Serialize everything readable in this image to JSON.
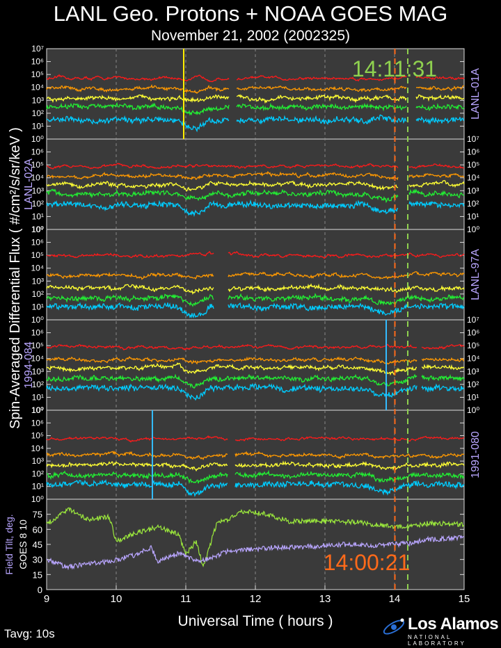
{
  "title": "LANL Geo. Protons + NOAA GOES MAG",
  "subtitle": "November 21, 2002 (2002325)",
  "xlabel": "Universal Time ( hours )",
  "ylabel": "Spin-Averaged Differential Flux  ( #/cm²/s/sr/keV )",
  "tavg": "Tavg: 10s",
  "logo": {
    "main": "Los Alamos",
    "sub": "NATIONAL LABORATORY"
  },
  "time_markers": [
    {
      "label": "14:11:31",
      "time_hours": 14.19,
      "color": "#8fd14f",
      "style": "dashed"
    },
    {
      "label": "14:00:21",
      "time_hours": 14.005,
      "color": "#ff6a1a",
      "style": "dashed"
    }
  ],
  "colors": {
    "background": "#3a3a3a",
    "channels": [
      "#ff1a1a",
      "#ff9900",
      "#ffff33",
      "#22ee33",
      "#00ccff"
    ],
    "tilt_goes10": "#9be83c",
    "tilt_goes8": "#b9a6ff",
    "label_purple": "#b9a6ff"
  },
  "chart_data": [
    {
      "type": "line",
      "title": "LANL-01A",
      "y_scale": "log",
      "ylim": [
        1,
        10000000
      ],
      "xlim": [
        9,
        15
      ],
      "channels": 5,
      "approx_levels": [
        50000,
        8000,
        1500,
        300,
        30
      ],
      "data_gaps_hours": [
        [
          11.62,
          11.72
        ],
        [
          14.17,
          14.3
        ]
      ],
      "vertical_line": {
        "time_hours": 10.97,
        "color": "#ffee00"
      }
    },
    {
      "type": "line",
      "title": "LANL-02A",
      "y_scale": "log",
      "ylim": [
        1,
        10000000
      ],
      "xlim": [
        9,
        15
      ],
      "channels": 5,
      "approx_levels": [
        80000,
        15000,
        3000,
        600,
        80
      ],
      "data_gaps_hours": [
        [
          14.05,
          14.2
        ]
      ]
    },
    {
      "type": "line",
      "title": "LANL-97A",
      "y_scale": "log",
      "ylim": [
        1,
        10000000
      ],
      "xlim": [
        9,
        15
      ],
      "channels": 5,
      "approx_levels": [
        100000,
        3000,
        300,
        50,
        10
      ],
      "data_gaps_hours": [
        [
          11.4,
          11.6
        ]
      ]
    },
    {
      "type": "line",
      "title": "1994-084",
      "y_scale": "log",
      "ylim": [
        1,
        10000000
      ],
      "xlim": [
        9,
        15
      ],
      "channels": 5,
      "approx_levels": [
        80000,
        8000,
        2000,
        300,
        50
      ],
      "data_gaps_hours": [
        [
          14.32,
          14.38
        ]
      ],
      "vertical_line": {
        "time_hours": 13.88,
        "color": "#33bbff"
      }
    },
    {
      "type": "line",
      "title": "1991-080",
      "y_scale": "log",
      "ylim": [
        1,
        10000000
      ],
      "xlim": [
        9,
        15
      ],
      "channels": 5,
      "approx_levels": [
        60000,
        3000,
        500,
        80,
        15
      ],
      "data_gaps_hours": [
        [
          11.6,
          11.7
        ]
      ],
      "vertical_line": {
        "time_hours": 10.52,
        "color": "#33bbff"
      }
    },
    {
      "type": "line",
      "title": "Field Tilt, deg.",
      "ylabel": "GOES 8   10",
      "ylim": [
        0,
        90
      ],
      "yticks": [
        0,
        15,
        30,
        45,
        60,
        75
      ],
      "xlim": [
        9,
        15
      ],
      "xticks": [
        "9",
        "10",
        "11",
        "12",
        "13",
        "14",
        "15"
      ],
      "series": [
        {
          "name": "10",
          "knots": [
            [
              9.0,
              65
            ],
            [
              9.3,
              80
            ],
            [
              9.6,
              70
            ],
            [
              9.9,
              72
            ],
            [
              10.0,
              48
            ],
            [
              10.3,
              57
            ],
            [
              10.6,
              62
            ],
            [
              10.9,
              55
            ],
            [
              11.0,
              35
            ],
            [
              11.15,
              48
            ],
            [
              11.25,
              22
            ],
            [
              11.45,
              67
            ],
            [
              11.6,
              70
            ],
            [
              11.8,
              78
            ],
            [
              12.1,
              76
            ],
            [
              12.5,
              68
            ],
            [
              13.0,
              68
            ],
            [
              13.5,
              67
            ],
            [
              14.0,
              62
            ],
            [
              14.5,
              66
            ],
            [
              15.0,
              65
            ]
          ]
        },
        {
          "name": "8",
          "knots": [
            [
              9.0,
              30
            ],
            [
              9.3,
              22
            ],
            [
              9.6,
              26
            ],
            [
              9.9,
              28
            ],
            [
              10.3,
              35
            ],
            [
              10.5,
              42
            ],
            [
              10.6,
              28
            ],
            [
              10.9,
              36
            ],
            [
              11.2,
              28
            ],
            [
              11.4,
              33
            ],
            [
              11.6,
              38
            ],
            [
              11.9,
              40
            ],
            [
              12.3,
              42
            ],
            [
              12.8,
              43
            ],
            [
              13.3,
              45
            ],
            [
              13.8,
              44
            ],
            [
              14.2,
              46
            ],
            [
              14.5,
              50
            ],
            [
              15.0,
              52
            ]
          ]
        }
      ]
    }
  ],
  "axis_labels": {
    "left_log_ticks": [
      "10⁰",
      "10¹",
      "10²",
      "10³",
      "10⁴",
      "10⁵",
      "10⁶",
      "10⁷"
    ]
  }
}
